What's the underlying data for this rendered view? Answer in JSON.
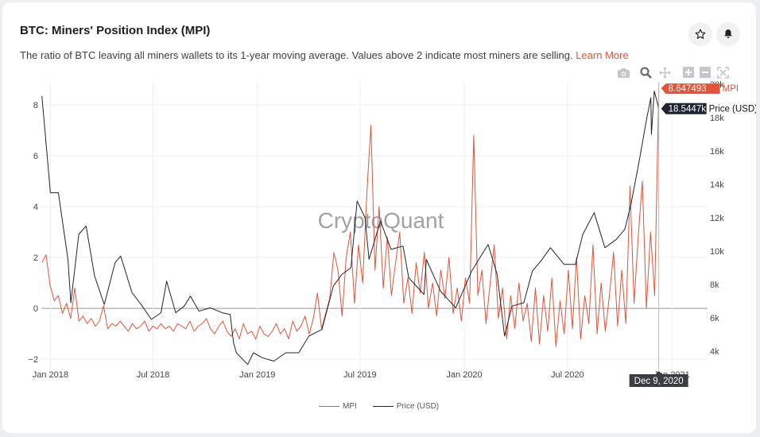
{
  "header": {
    "title": "BTC: Miners' Position Index (MPI)",
    "description": "The ratio of BTC leaving all miners wallets to its 1-year moving average. Values above 2 indicate most miners are selling.",
    "learn_more": "Learn More"
  },
  "buttons": {
    "favorite": "star-icon",
    "alerts": "bell-icon"
  },
  "modebar": [
    "camera-icon",
    "zoom-icon",
    "pan-icon",
    "zoom-in-icon",
    "zoom-out-icon",
    "autoscale-icon"
  ],
  "watermark": "CryptoQuant",
  "colors": {
    "mpi": "#e2533a",
    "price": "#1f2430",
    "accent": "#e2533a"
  },
  "chart_data": {
    "type": "line",
    "title": "BTC: Miners' Position Index (MPI)",
    "x_ticks": [
      "Jan 2018",
      "Jul 2018",
      "Jan 2019",
      "Jul 2019",
      "Jan 2020",
      "Jul 2020",
      "Jan 2021"
    ],
    "x_tick_dates": [
      "2018-01-01",
      "2018-07-01",
      "2019-01-01",
      "2019-07-01",
      "2020-01-01",
      "2020-07-01",
      "2021-01-01"
    ],
    "xlim": [
      "2017-12-16",
      "2021-03-05"
    ],
    "y_left": {
      "ticks": [
        "8",
        "6",
        "4",
        "2",
        "0",
        "−2"
      ],
      "tick_values": [
        8,
        6,
        4,
        2,
        0,
        -2
      ],
      "range": [
        -2.4,
        8.9
      ]
    },
    "y_right": {
      "ticks": [
        "20k",
        "18k",
        "16k",
        "14k",
        "12k",
        "10k",
        "8k",
        "6k",
        "4k"
      ],
      "tick_values": [
        20,
        18,
        16,
        14,
        12,
        10,
        8,
        6,
        4
      ],
      "range": [
        2.9,
        20.15
      ],
      "unit": "thousand USD"
    },
    "legend": [
      "MPI",
      "Price (USD)"
    ],
    "legend_position": "bottom-center",
    "hover": {
      "date": "Dec 9, 2020",
      "mpi": "8.647493",
      "mpi_label": "MPI",
      "price": "18.5447k",
      "price_label": "Price (USD)"
    },
    "series": [
      {
        "name": "MPI",
        "axis": "left",
        "start": "2017-12-17",
        "end": "2020-12-09",
        "values": [
          1.8,
          2.1,
          0.9,
          0.3,
          0.5,
          -0.2,
          0.2,
          -0.4,
          0.8,
          -0.5,
          -0.3,
          -0.6,
          -0.4,
          -0.7,
          -0.5,
          0.1,
          -0.8,
          -0.6,
          -0.7,
          -0.5,
          -0.7,
          -0.9,
          -0.6,
          -0.8,
          -0.7,
          -0.5,
          -0.9,
          -0.7,
          -0.8,
          -0.6,
          -0.8,
          -0.7,
          -0.9,
          -0.6,
          -0.7,
          -0.8,
          -0.5,
          -0.9,
          -0.7,
          -0.6,
          -0.4,
          -0.8,
          -1.0,
          -0.7,
          -0.5,
          -0.9,
          -1.1,
          -0.8,
          -1.2,
          -0.6,
          -1.0,
          -0.9,
          -1.2,
          -0.7,
          -1.0,
          -1.1,
          -0.9,
          -0.6,
          -1.0,
          -0.8,
          -1.2,
          -0.5,
          -0.9,
          -0.7,
          -0.3,
          -1.0,
          -0.4,
          0.6,
          -0.8,
          -0.2,
          0.4,
          2.2,
          1.5,
          -0.3,
          2.0,
          3.0,
          0.2,
          2.5,
          1.0,
          4.5,
          7.2,
          1.5,
          4.0,
          0.8,
          2.8,
          0.5,
          1.8,
          3.0,
          0.2,
          1.2,
          -0.2,
          1.8,
          0.6,
          2.2,
          0.0,
          1.0,
          -0.3,
          1.5,
          0.4,
          2.0,
          -0.2,
          0.8,
          -0.5,
          1.2,
          0.2,
          6.8,
          0.5,
          1.5,
          -0.6,
          1.0,
          2.5,
          -0.4,
          0.8,
          -1.2,
          0.5,
          -0.8,
          1.0,
          -0.5,
          0.2,
          -1.3,
          0.8,
          -1.4,
          0.5,
          -0.9,
          1.2,
          -1.5,
          0.3,
          -1.0,
          1.5,
          -0.8,
          2.0,
          -1.2,
          0.5,
          -0.6,
          2.5,
          -1.0,
          1.0,
          -0.9,
          0.5,
          2.2,
          -0.7,
          1.5,
          -0.6,
          4.8,
          0.2,
          2.8,
          5.0,
          0.0,
          3.0,
          0.5,
          8.647
        ]
      },
      {
        "name": "Price (USD)",
        "axis": "right",
        "points": [
          [
            "2017-12-17",
            19.3
          ],
          [
            "2018-01-01",
            13.5
          ],
          [
            "2018-01-15",
            13.5
          ],
          [
            "2018-02-01",
            9.5
          ],
          [
            "2018-02-06",
            6.9
          ],
          [
            "2018-02-20",
            11.0
          ],
          [
            "2018-03-05",
            11.5
          ],
          [
            "2018-03-20",
            8.5
          ],
          [
            "2018-04-06",
            6.8
          ],
          [
            "2018-04-25",
            9.3
          ],
          [
            "2018-05-05",
            9.7
          ],
          [
            "2018-05-25",
            7.5
          ],
          [
            "2018-06-10",
            6.8
          ],
          [
            "2018-06-28",
            5.9
          ],
          [
            "2018-07-15",
            6.3
          ],
          [
            "2018-07-25",
            8.2
          ],
          [
            "2018-08-10",
            6.3
          ],
          [
            "2018-08-25",
            6.7
          ],
          [
            "2018-09-05",
            7.3
          ],
          [
            "2018-09-20",
            6.4
          ],
          [
            "2018-10-10",
            6.6
          ],
          [
            "2018-10-31",
            6.3
          ],
          [
            "2018-11-14",
            6.2
          ],
          [
            "2018-11-20",
            4.5
          ],
          [
            "2018-11-25",
            3.9
          ],
          [
            "2018-12-15",
            3.2
          ],
          [
            "2018-12-25",
            3.9
          ],
          [
            "2019-01-10",
            3.6
          ],
          [
            "2019-01-30",
            3.4
          ],
          [
            "2019-02-20",
            3.9
          ],
          [
            "2019-03-15",
            3.9
          ],
          [
            "2019-04-02",
            4.9
          ],
          [
            "2019-04-25",
            5.3
          ],
          [
            "2019-05-15",
            7.9
          ],
          [
            "2019-05-30",
            8.6
          ],
          [
            "2019-06-15",
            9.0
          ],
          [
            "2019-06-26",
            13.0
          ],
          [
            "2019-07-10",
            12.0
          ],
          [
            "2019-07-17",
            9.5
          ],
          [
            "2019-08-06",
            11.8
          ],
          [
            "2019-08-25",
            10.1
          ],
          [
            "2019-09-15",
            10.3
          ],
          [
            "2019-09-25",
            8.4
          ],
          [
            "2019-10-22",
            7.4
          ],
          [
            "2019-10-26",
            9.5
          ],
          [
            "2019-11-20",
            7.6
          ],
          [
            "2019-12-17",
            6.6
          ],
          [
            "2020-01-14",
            8.8
          ],
          [
            "2020-02-12",
            10.4
          ],
          [
            "2020-02-28",
            8.6
          ],
          [
            "2020-03-12",
            4.9
          ],
          [
            "2020-03-25",
            6.7
          ],
          [
            "2020-04-15",
            6.9
          ],
          [
            "2020-04-30",
            8.8
          ],
          [
            "2020-05-15",
            9.4
          ],
          [
            "2020-06-01",
            10.2
          ],
          [
            "2020-06-25",
            9.2
          ],
          [
            "2020-07-15",
            9.2
          ],
          [
            "2020-07-28",
            11.0
          ],
          [
            "2020-08-17",
            12.3
          ],
          [
            "2020-09-05",
            10.2
          ],
          [
            "2020-09-25",
            10.7
          ],
          [
            "2020-10-10",
            11.3
          ],
          [
            "2020-10-21",
            12.8
          ],
          [
            "2020-11-05",
            15.5
          ],
          [
            "2020-11-18",
            18.0
          ],
          [
            "2020-11-25",
            19.2
          ],
          [
            "2020-11-26",
            17.0
          ],
          [
            "2020-12-01",
            19.6
          ],
          [
            "2020-12-09",
            18.5447
          ]
        ]
      }
    ]
  }
}
